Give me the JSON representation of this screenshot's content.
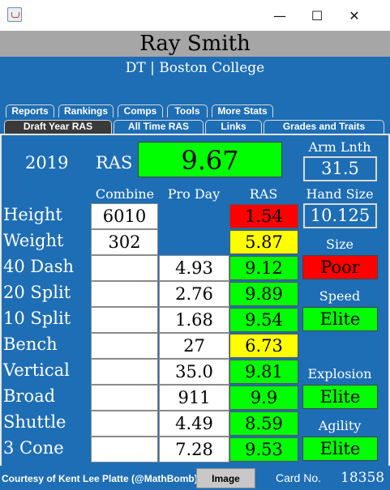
{
  "window": {
    "minimize": "—",
    "maximize": "☐",
    "close": "✕"
  },
  "player": {
    "name": "Ray Smith",
    "subtitle": "DT | Boston College"
  },
  "tabs_row1": [
    "Reports",
    "Rankings",
    "Comps",
    "Tools",
    "More Stats"
  ],
  "tabs_row2": [
    "Draft Year RAS",
    "All Time RAS",
    "Links",
    "Grades and Traits"
  ],
  "summary": {
    "year": "2019",
    "ras_label": "RAS",
    "ras_value": "9.67",
    "arm_label": "Arm Lnth",
    "arm_value": "31.5",
    "hand_label": "Hand Size",
    "hand_value": "10.125"
  },
  "columns": {
    "combine": "Combine",
    "pro_day": "Pro Day",
    "ras": "RAS"
  },
  "rows": [
    {
      "label": "Height",
      "combine": "6010",
      "pro_day": "",
      "ras": "1.54",
      "color": "red"
    },
    {
      "label": "Weight",
      "combine": "302",
      "pro_day": "",
      "ras": "5.87",
      "color": "yellow"
    },
    {
      "label": "40 Dash",
      "combine": "",
      "pro_day": "4.93",
      "ras": "9.12",
      "color": "green"
    },
    {
      "label": "20 Split",
      "combine": "",
      "pro_day": "2.76",
      "ras": "9.89",
      "color": "green"
    },
    {
      "label": "10 Split",
      "combine": "",
      "pro_day": "1.68",
      "ras": "9.54",
      "color": "green"
    },
    {
      "label": "Bench",
      "combine": "",
      "pro_day": "27",
      "ras": "6.73",
      "color": "yellow"
    },
    {
      "label": "Vertical",
      "combine": "",
      "pro_day": "35.0",
      "ras": "9.81",
      "color": "green"
    },
    {
      "label": "Broad",
      "combine": "",
      "pro_day": "911",
      "ras": "9.9",
      "color": "green"
    },
    {
      "label": "Shuttle",
      "combine": "",
      "pro_day": "4.49",
      "ras": "8.59",
      "color": "green"
    },
    {
      "label": "3 Cone",
      "combine": "",
      "pro_day": "7.28",
      "ras": "9.53",
      "color": "green"
    }
  ],
  "grades": [
    {
      "label": "Size",
      "value": "Poor",
      "color": "red"
    },
    {
      "label": "Speed",
      "value": "Elite",
      "color": "green"
    },
    {
      "label": "Explosion",
      "value": "Elite",
      "color": "green"
    },
    {
      "label": "Agility",
      "value": "Elite",
      "color": "green"
    }
  ],
  "footer": {
    "credit": "Courtesy of Kent Lee Platte (@MathBomb)",
    "image_button": "Image",
    "card_label": "Card No.",
    "card_number": "18358"
  },
  "colors": {
    "background": "#1e6eb5",
    "green": "#00ff00",
    "yellow": "#ffff00",
    "red": "#ff0000",
    "header_gray": "#a6a6a6"
  }
}
